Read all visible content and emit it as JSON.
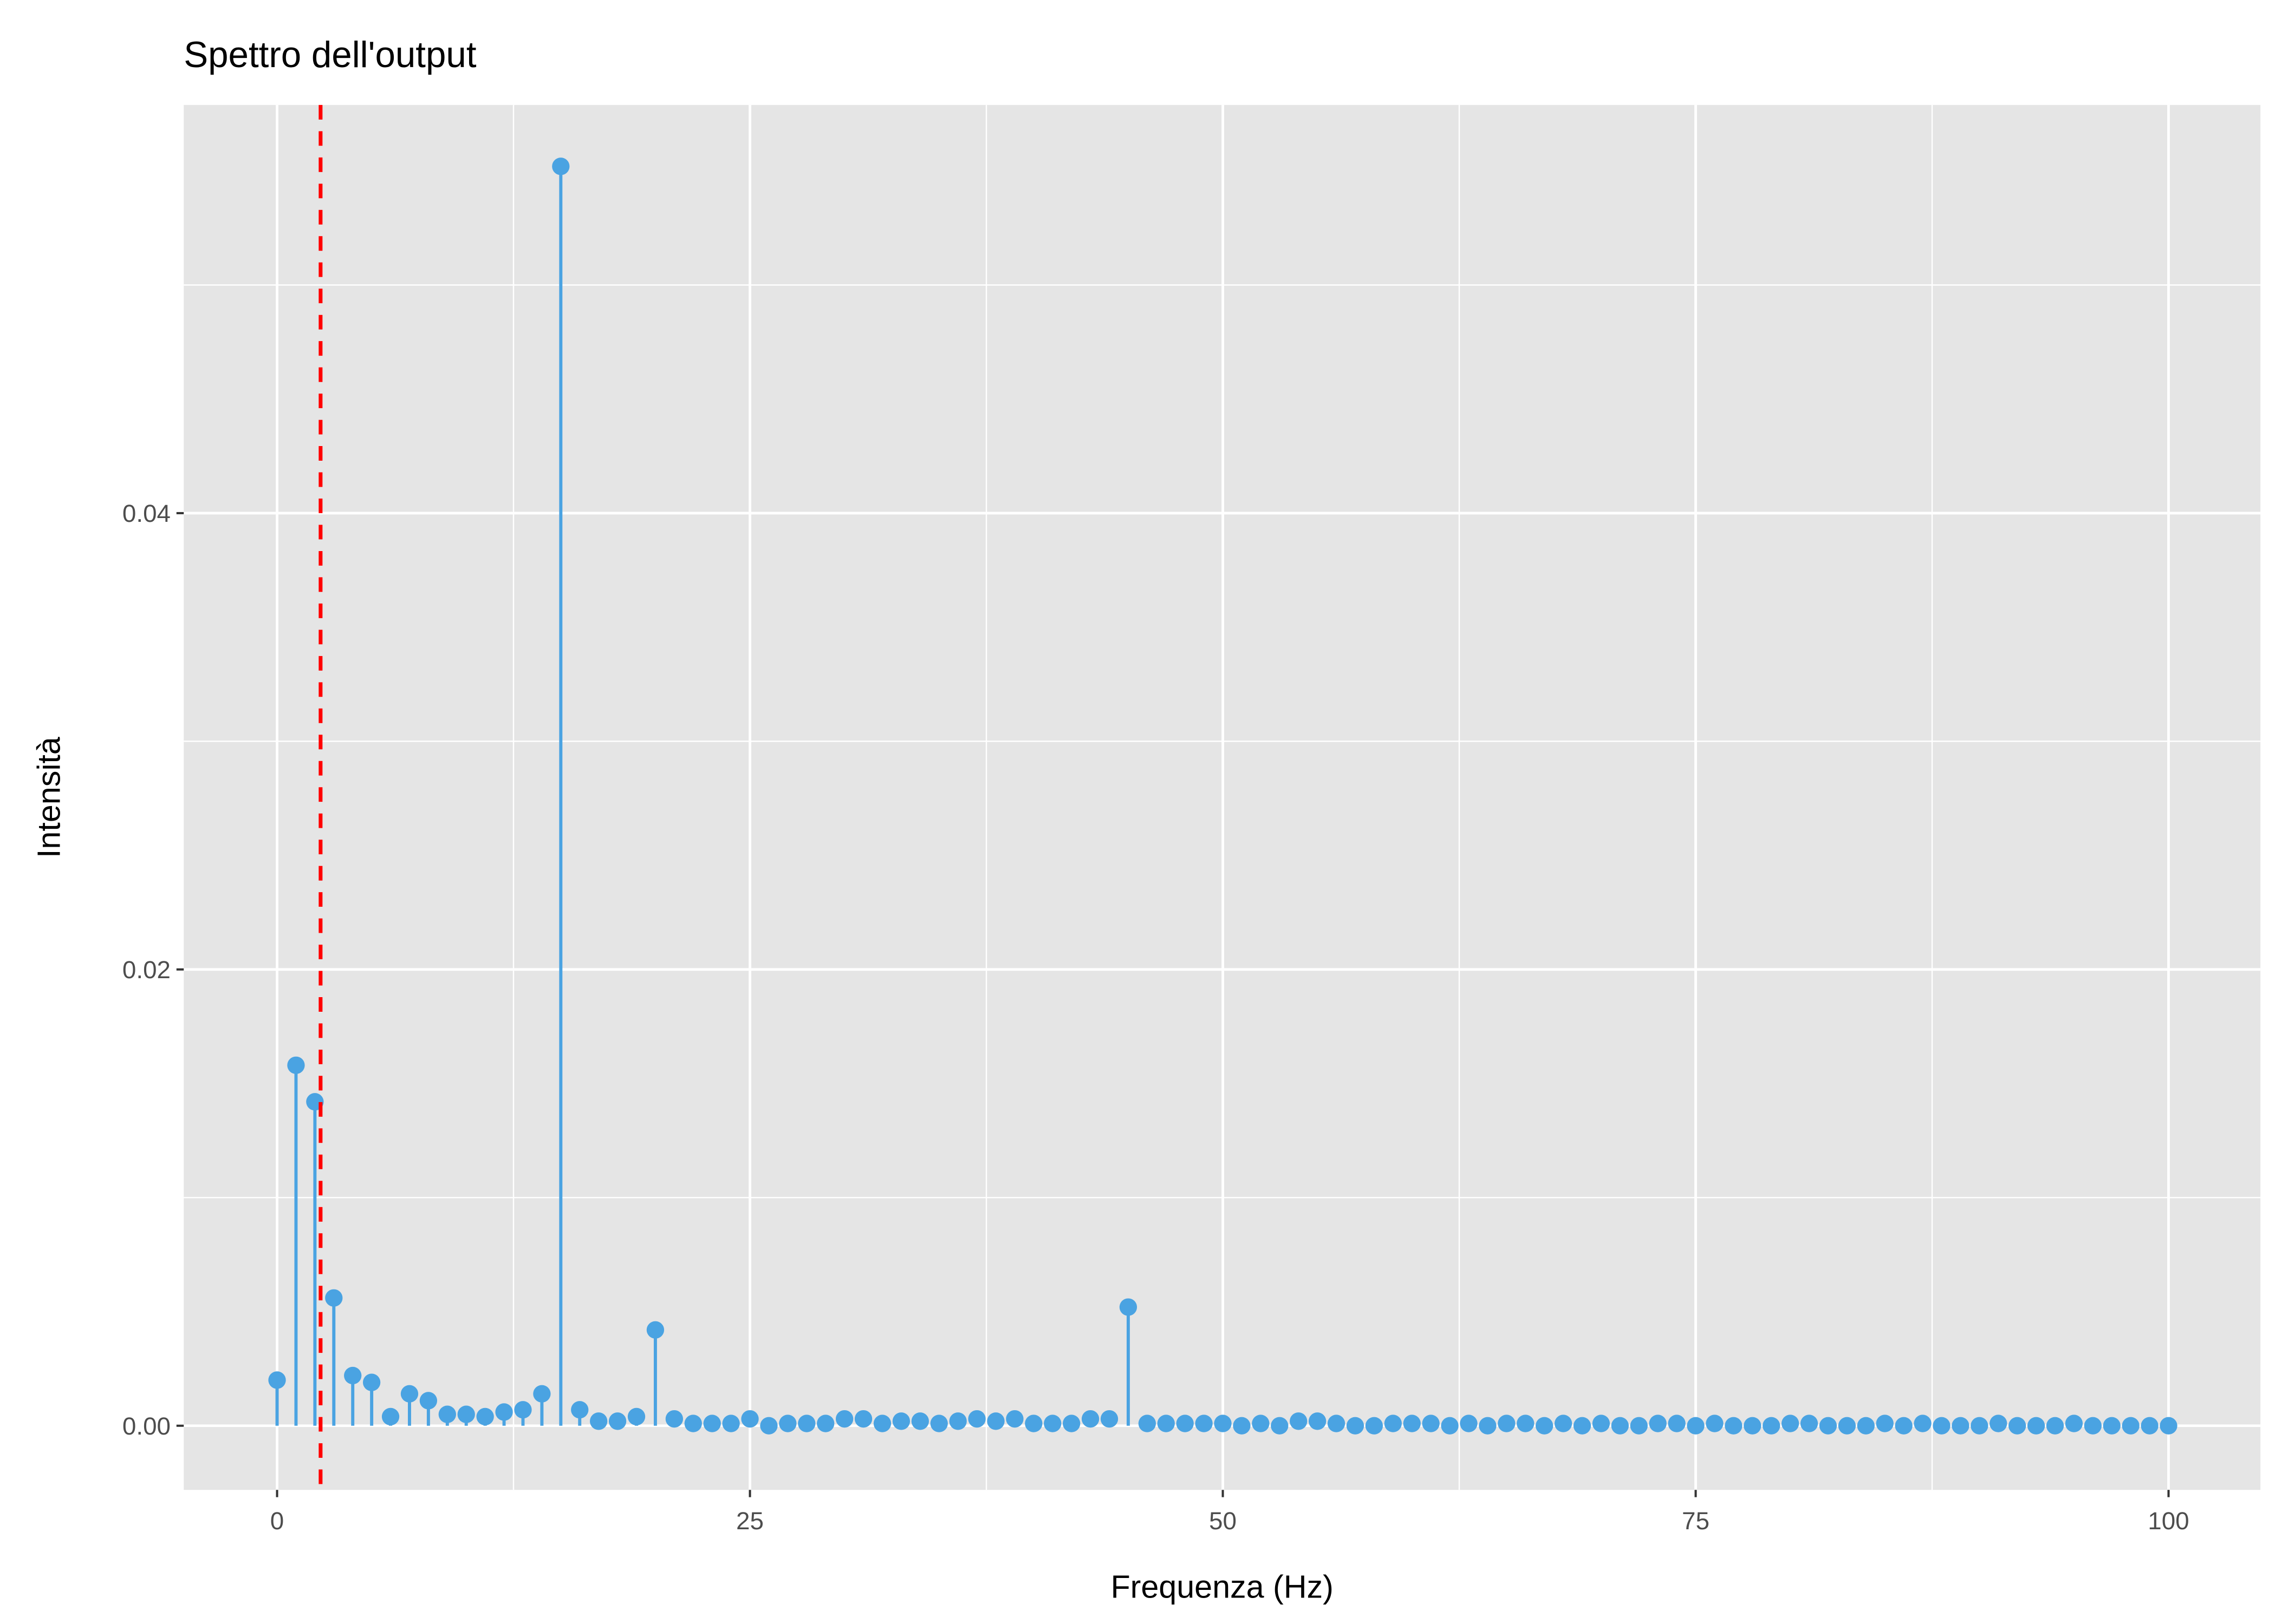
{
  "chart_data": {
    "type": "lollipop",
    "title": "Spettro dell'output",
    "xlabel": "Frequenza (Hz)",
    "ylabel": "Intensità",
    "xlim": [
      -5,
      105
    ],
    "ylim": [
      -0.0028,
      0.058
    ],
    "x_ticks": [
      0,
      25,
      50,
      75,
      100
    ],
    "x_tick_labels": [
      "0",
      "25",
      "50",
      "75",
      "100"
    ],
    "y_ticks": [
      0,
      0.02,
      0.04
    ],
    "y_tick_labels": [
      "0.00",
      "0.02",
      "0.04"
    ],
    "grid": true,
    "point_color": "#4AA3E2",
    "reference_line": {
      "x": 2.3,
      "color": "#FF0000",
      "style": "dashed"
    },
    "x": [
      0,
      1,
      2,
      3,
      4,
      5,
      6,
      7,
      8,
      9,
      10,
      11,
      12,
      13,
      14,
      15,
      16,
      17,
      18,
      19,
      20,
      21,
      22,
      23,
      24,
      25,
      26,
      27,
      28,
      29,
      30,
      31,
      32,
      33,
      34,
      35,
      36,
      37,
      38,
      39,
      40,
      41,
      42,
      43,
      44,
      45,
      46,
      47,
      48,
      49,
      50,
      51,
      52,
      53,
      54,
      55,
      56,
      57,
      58,
      59,
      60,
      61,
      62,
      63,
      64,
      65,
      66,
      67,
      68,
      69,
      70,
      71,
      72,
      73,
      74,
      75,
      76,
      77,
      78,
      79,
      80,
      81,
      82,
      83,
      84,
      85,
      86,
      87,
      88,
      89,
      90,
      91,
      92,
      93,
      94,
      95,
      96,
      97,
      98,
      99,
      100
    ],
    "values": [
      0.002,
      0.0158,
      0.0142,
      0.0056,
      0.0022,
      0.0019,
      0.0004,
      0.0014,
      0.0011,
      0.0005,
      0.0005,
      0.0004,
      0.0006,
      0.0007,
      0.0014,
      0.0552,
      0.0007,
      0.0002,
      0.0002,
      0.0004,
      0.0042,
      0.0003,
      0.0001,
      0.0001,
      0.0001,
      0.0003,
      0.0,
      0.0001,
      0.0001,
      0.0001,
      0.0003,
      0.0003,
      0.0001,
      0.0002,
      0.0002,
      0.0001,
      0.0002,
      0.0003,
      0.0002,
      0.0003,
      0.0001,
      0.0001,
      0.0001,
      0.0003,
      0.0003,
      0.0052,
      0.0001,
      0.0001,
      0.0001,
      0.0001,
      0.0001,
      0.0,
      0.0001,
      0.0,
      0.0002,
      0.0002,
      0.0001,
      0.0,
      0.0,
      0.0001,
      0.0001,
      0.0001,
      0.0,
      0.0001,
      0.0,
      0.0001,
      0.0001,
      0.0,
      0.0001,
      0.0,
      0.0001,
      0.0,
      0.0,
      0.0001,
      0.0001,
      0.0,
      0.0001,
      0.0,
      0.0,
      0.0,
      0.0001,
      0.0001,
      0.0,
      0.0,
      0.0,
      0.0001,
      0.0,
      0.0001,
      0.0,
      0.0,
      0.0,
      0.0001,
      0.0,
      0.0,
      0.0,
      0.0001,
      0.0,
      0.0,
      0.0,
      0.0,
      0.0
    ]
  }
}
